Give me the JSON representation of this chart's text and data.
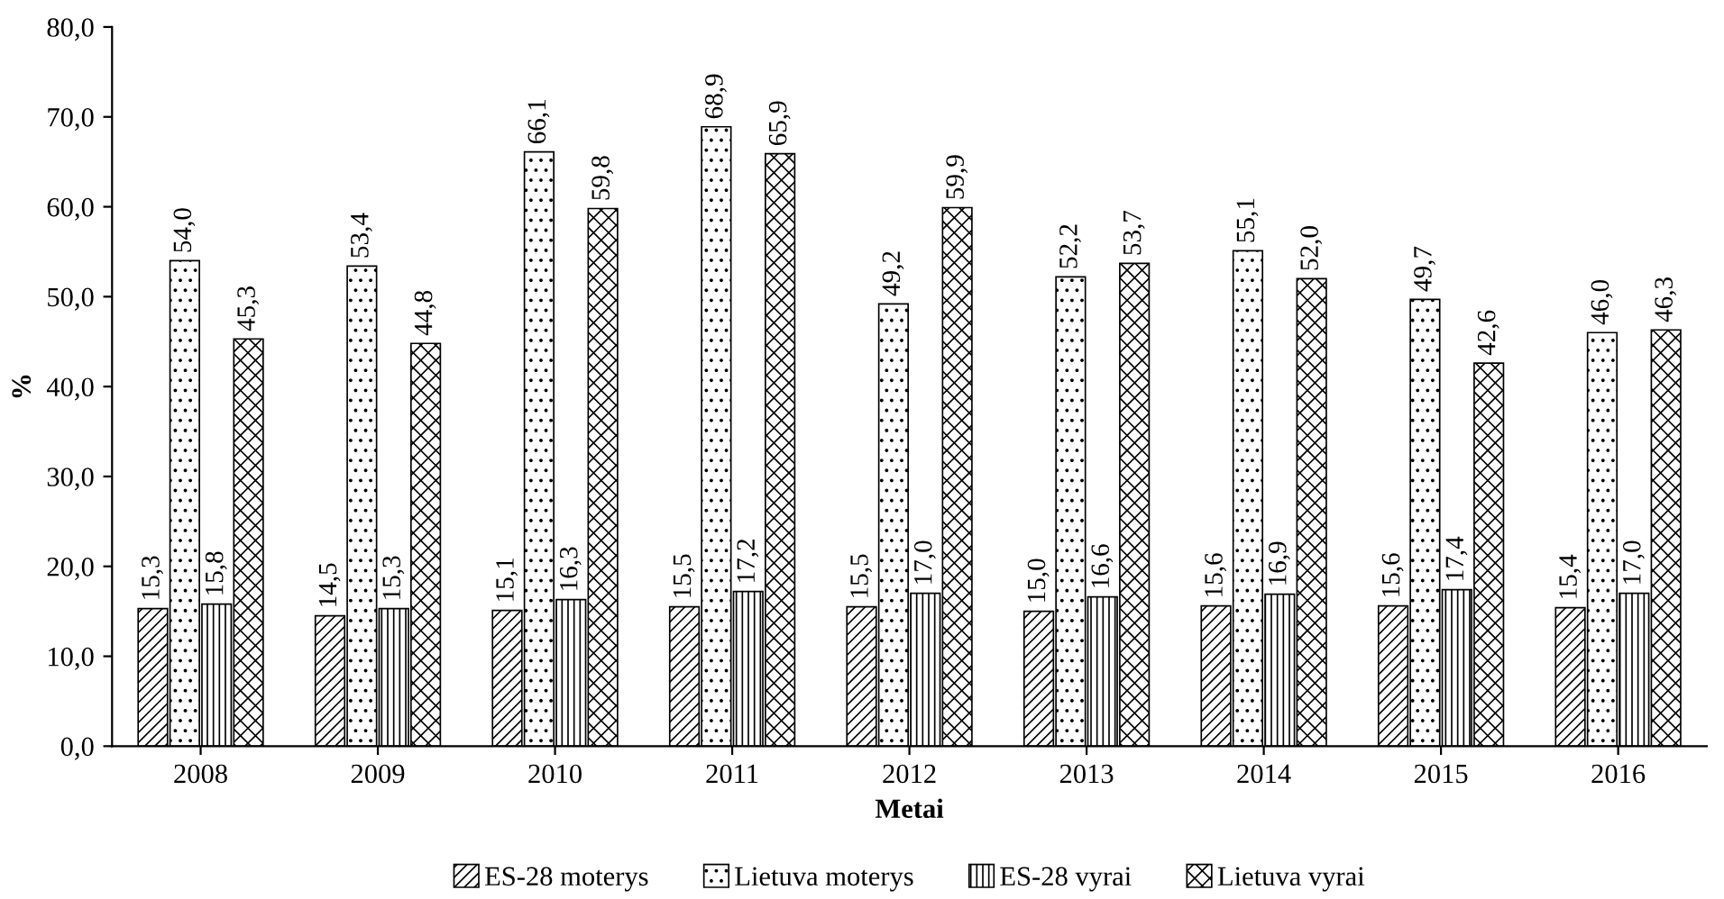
{
  "chart_data": {
    "type": "bar",
    "xlabel": "Metai",
    "ylabel": "%",
    "categories": [
      "2008",
      "2009",
      "2010",
      "2011",
      "2012",
      "2013",
      "2014",
      "2015",
      "2016"
    ],
    "series": [
      {
        "name": "ES-28 moterys",
        "color": "#000000",
        "values": [
          15.3,
          14.5,
          15.1,
          15.5,
          15.5,
          15.0,
          15.6,
          15.6,
          15.4
        ],
        "value_labels": [
          "15,3",
          "14,5",
          "15,1",
          "15,5",
          "15,5",
          "15,0",
          "15,6",
          "15,6",
          "15,4"
        ]
      },
      {
        "name": "Lietuva moterys",
        "color": "#000000",
        "values": [
          54.0,
          53.4,
          66.1,
          68.9,
          49.2,
          52.2,
          55.1,
          49.7,
          46.0
        ],
        "value_labels": [
          "54,0",
          "53,4",
          "66,1",
          "68,9",
          "49,2",
          "52,2",
          "55,1",
          "49,7",
          "46,0"
        ]
      },
      {
        "name": "ES-28 vyrai",
        "color": "#000000",
        "values": [
          15.8,
          15.3,
          16.3,
          17.2,
          17.0,
          16.6,
          16.9,
          17.4,
          17.0
        ],
        "value_labels": [
          "15,8",
          "15,3",
          "16,3",
          "17,2",
          "17,0",
          "16,6",
          "16,9",
          "17,4",
          "17,0"
        ]
      },
      {
        "name": "Lietuva vyrai",
        "color": "#000000",
        "values": [
          45.3,
          44.8,
          59.8,
          65.9,
          59.9,
          53.7,
          52.0,
          42.6,
          46.3
        ],
        "value_labels": [
          "45,3",
          "44,8",
          "59,8",
          "65,9",
          "59,9",
          "53,7",
          "52,0",
          "42,6",
          "46,3"
        ]
      }
    ],
    "ylim": [
      0,
      80
    ],
    "yticks": [
      {
        "value": 0,
        "label": "0,0"
      },
      {
        "value": 10,
        "label": "10,0"
      },
      {
        "value": 20,
        "label": "20,0"
      },
      {
        "value": 30,
        "label": "30,0"
      },
      {
        "value": 40,
        "label": "40,0"
      },
      {
        "value": 50,
        "label": "50,0"
      },
      {
        "value": 60,
        "label": "60,0"
      },
      {
        "value": 70,
        "label": "70,0"
      },
      {
        "value": 80,
        "label": "80,0"
      }
    ],
    "grid": false,
    "legend": "bottom"
  }
}
